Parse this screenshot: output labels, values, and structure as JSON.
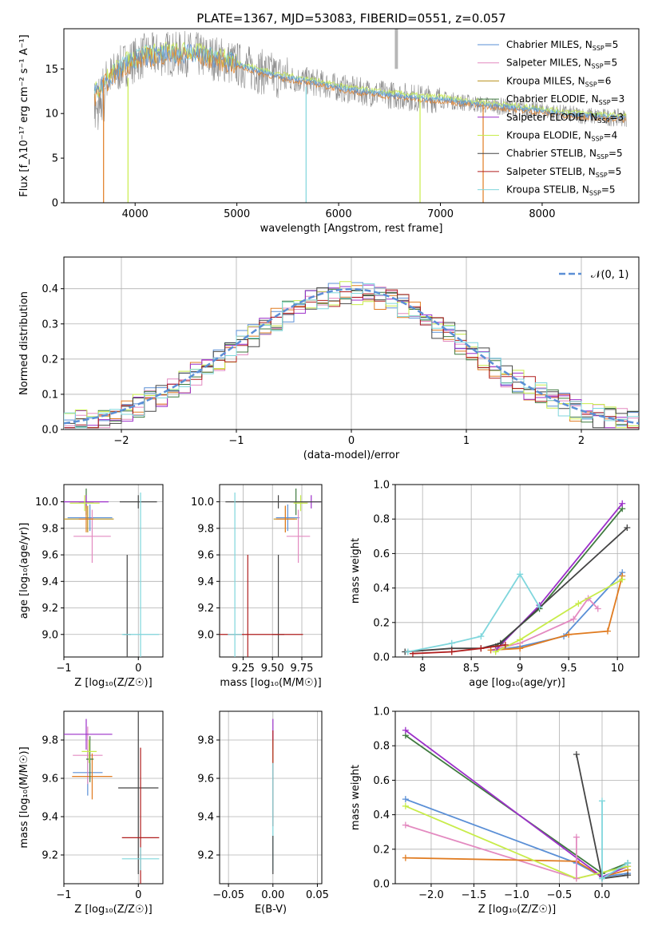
{
  "figure": {
    "title": "PLATE=1367, MJD=53083, FIBERID=0551, z=0.057"
  },
  "series_colors": {
    "Chabrier MILES": "#5a8fd6",
    "Salpeter MILES": "#e38ac0",
    "Kroupa MILES": "#b8901c",
    "Chabrier ELODIE": "#3f7a3f",
    "Salpeter ELODIE": "#9c2fc9",
    "Kroupa ELODIE": "#c8ec4a",
    "Chabrier STELIB": "#444444",
    "Salpeter STELIB": "#b01e1e",
    "Kroupa STELIB": "#7fd6dc",
    "orange": "#e07b20",
    "gray": "#8a8a8a"
  },
  "chart_data": [
    {
      "id": "spectrum",
      "type": "line",
      "xlabel": "wavelength [Angstrom, rest frame]",
      "ylabel": "Flux [f_λ10⁻¹⁷ erg cm⁻² s⁻¹ A⁻¹]",
      "xlim": [
        3300,
        8950
      ],
      "ylim": [
        0,
        19.5
      ],
      "xticks": [
        4000,
        5000,
        6000,
        7000,
        8000
      ],
      "yticks": [
        0,
        5,
        10,
        15
      ],
      "legend_position": "upper-right",
      "legend": [
        {
          "label": "Chabrier MILES, N",
          "sub": "SSP",
          "suffix": "=5",
          "key": "Chabrier MILES"
        },
        {
          "label": "Salpeter MILES, N",
          "sub": "SSP",
          "suffix": "=5",
          "key": "Salpeter MILES"
        },
        {
          "label": "Kroupa MILES, N",
          "sub": "SSP",
          "suffix": "=6",
          "key": "Kroupa MILES"
        },
        {
          "label": "Chabrier ELODIE, N",
          "sub": "SSP",
          "suffix": "=3",
          "key": "Chabrier ELODIE"
        },
        {
          "label": "Salpeter ELODIE, N",
          "sub": "SSP",
          "suffix": "=3",
          "key": "Salpeter ELODIE"
        },
        {
          "label": "Kroupa ELODIE, N",
          "sub": "SSP",
          "suffix": "=4",
          "key": "Kroupa ELODIE"
        },
        {
          "label": "Chabrier STELIB, N",
          "sub": "SSP",
          "suffix": "=5",
          "key": "Chabrier STELIB"
        },
        {
          "label": "Salpeter STELIB, N",
          "sub": "SSP",
          "suffix": "=5",
          "key": "Salpeter STELIB"
        },
        {
          "label": "Kroupa STELIB, N",
          "sub": "SSP",
          "suffix": "=5",
          "key": "Kroupa STELIB"
        }
      ],
      "data_curve": {
        "x": [
          3600,
          3700,
          3800,
          3900,
          4000,
          4100,
          4200,
          4300,
          4400,
          4500,
          4600,
          4700,
          4800,
          5000,
          5200,
          5400,
          5600,
          5800,
          6000,
          6200,
          6400,
          6600,
          6800,
          7000,
          7200,
          7400,
          7600,
          7800,
          8000,
          8200,
          8400,
          8600,
          8800
        ],
        "y": [
          12,
          13.5,
          14.5,
          15.5,
          16,
          16.5,
          16.5,
          16.8,
          16.6,
          16.7,
          16.6,
          16.3,
          16.2,
          15.5,
          14.8,
          14.2,
          13.8,
          13.4,
          12.9,
          12.5,
          12.2,
          12.0,
          11.7,
          11.6,
          11.3,
          11.0,
          10.8,
          10.5,
          10.3,
          10.0,
          9.8,
          9.6,
          9.5
        ]
      },
      "sky_line_x": [
        6560,
        6575
      ]
    },
    {
      "id": "residuals",
      "type": "line",
      "xlabel": "(data-model)/error",
      "ylabel": "Normed distribution",
      "xlim": [
        -2.5,
        2.5
      ],
      "ylim": [
        0,
        0.49
      ],
      "xticks": [
        -2,
        -1,
        0,
        1,
        2
      ],
      "yticks": [
        0.0,
        0.1,
        0.2,
        0.3,
        0.4
      ],
      "grid": true,
      "legend_position": "upper-right",
      "legend_label": "𝒩(0, 1)",
      "bin_width": 0.1
    },
    {
      "id": "age_vs_Z",
      "type": "scatter",
      "xlabel": "Z [log₁₀(Z/Z☉)]",
      "ylabel": "age  [log₁₀(age/yr)]",
      "xlim": [
        -1.0,
        0.33
      ],
      "ylim": [
        8.83,
        10.13
      ],
      "xticks": [
        -1,
        0
      ],
      "yticks": [
        9.0,
        9.2,
        9.4,
        9.6,
        9.8,
        10.0
      ],
      "grid": true,
      "points": [
        {
          "key": "Chabrier MILES",
          "x": -0.65,
          "y": 9.88,
          "xerr": 0.3,
          "yerr": 0.1
        },
        {
          "key": "Salpeter MILES",
          "x": -0.62,
          "y": 9.74,
          "xerr": 0.25,
          "yerr": 0.2
        },
        {
          "key": "Kroupa MILES",
          "x": -0.68,
          "y": 9.87,
          "xerr": 0.35,
          "yerr": 0.1
        },
        {
          "key": "Chabrier ELODIE",
          "x": -0.7,
          "y": 10.0,
          "xerr": 0.1,
          "yerr": 0.1
        },
        {
          "key": "Salpeter ELODIE",
          "x": -0.7,
          "y": 10.0,
          "xerr": 0.3,
          "yerr": 0.05
        },
        {
          "key": "Kroupa ELODIE",
          "x": -0.72,
          "y": 9.99,
          "xerr": 0.2,
          "yerr": 0.06
        },
        {
          "key": "Chabrier STELIB",
          "x": 0.0,
          "y": 10.0,
          "xerr": 0.25,
          "yerr": 0.05
        },
        {
          "key": "Chabrier STELIB",
          "x": -0.15,
          "y": 9.0,
          "xerr": 0.05,
          "yerr": 0.6
        },
        {
          "key": "Kroupa STELIB",
          "x": 0.03,
          "y": 9.0,
          "xerr": 0.25,
          "yerr": 1.07
        },
        {
          "key": "orange",
          "x": -0.7,
          "y": 9.87,
          "xerr": 0.1,
          "yerr": 0.1
        }
      ]
    },
    {
      "id": "age_vs_mass",
      "type": "scatter",
      "xlabel": "mass [log₁₀(M/M☉)]",
      "ylabel": "",
      "xlim": [
        9.05,
        9.92
      ],
      "ylim": [
        8.83,
        10.13
      ],
      "xticks": [
        9.25,
        9.5,
        9.75
      ],
      "xticklabels": [
        "9.25",
        "9.50",
        "9.75"
      ],
      "yticks": [
        9.0,
        9.2,
        9.4,
        9.6,
        9.8,
        10.0
      ],
      "grid": true,
      "points": [
        {
          "key": "Chabrier MILES",
          "x": 9.63,
          "y": 9.88,
          "xerr": 0.1,
          "yerr": 0.1
        },
        {
          "key": "Salpeter MILES",
          "x": 9.72,
          "y": 9.74,
          "xerr": 0.1,
          "yerr": 0.2
        },
        {
          "key": "Kroupa MILES",
          "x": 9.61,
          "y": 9.87,
          "xerr": 0.1,
          "yerr": 0.1
        },
        {
          "key": "Chabrier ELODIE",
          "x": 9.7,
          "y": 10.0,
          "xerr": 0.05,
          "yerr": 0.1
        },
        {
          "key": "Salpeter ELODIE",
          "x": 9.83,
          "y": 10.0,
          "xerr": 0.08,
          "yerr": 0.05
        },
        {
          "key": "Kroupa ELODIE",
          "x": 9.74,
          "y": 9.99,
          "xerr": 0.06,
          "yerr": 0.06
        },
        {
          "key": "Chabrier STELIB",
          "x": 9.55,
          "y": 10.0,
          "xerr": 0.45,
          "yerr": 0.05
        },
        {
          "key": "Chabrier STELIB",
          "x": 9.55,
          "y": 9.0,
          "xerr": 0.05,
          "yerr": 0.6
        },
        {
          "key": "Salpeter STELIB",
          "x": 9.29,
          "y": 9.0,
          "xerr": 0.47,
          "yerr": 0.6
        },
        {
          "key": "Kroupa STELIB",
          "x": 9.18,
          "y": 9.0,
          "xerr": 0.06,
          "yerr": 1.07
        },
        {
          "key": "orange",
          "x": 9.61,
          "y": 9.87,
          "xerr": 0.08,
          "yerr": 0.1
        }
      ]
    },
    {
      "id": "massweight_vs_age",
      "type": "line",
      "xlabel": "age  [log₁₀(age/yr)]",
      "ylabel": "mass weight",
      "xlim": [
        7.72,
        10.22
      ],
      "ylim": [
        0,
        1.0
      ],
      "xticks": [
        8.0,
        8.5,
        9.0,
        9.5,
        10.0
      ],
      "yticks": [
        0.0,
        0.2,
        0.4,
        0.6,
        0.8,
        1.0
      ],
      "grid": true,
      "series": [
        {
          "key": "Chabrier MILES",
          "x": [
            8.75,
            9.0,
            9.45,
            10.05
          ],
          "y": [
            0.04,
            0.06,
            0.12,
            0.49
          ]
        },
        {
          "key": "Salpeter MILES",
          "x": [
            8.7,
            9.0,
            9.55,
            9.7,
            9.8
          ],
          "y": [
            0.04,
            0.08,
            0.22,
            0.34,
            0.28
          ]
        },
        {
          "key": "orange",
          "x": [
            8.7,
            9.0,
            9.5,
            9.9,
            10.05
          ],
          "y": [
            0.04,
            0.05,
            0.13,
            0.15,
            0.47
          ]
        },
        {
          "key": "Chabrier ELODIE",
          "x": [
            8.75,
            9.2,
            10.05
          ],
          "y": [
            0.06,
            0.28,
            0.86
          ]
        },
        {
          "key": "Salpeter ELODIE",
          "x": [
            8.75,
            9.2,
            10.05
          ],
          "y": [
            0.04,
            0.3,
            0.89
          ]
        },
        {
          "key": "Kroupa ELODIE",
          "x": [
            8.75,
            9.0,
            9.6,
            10.05
          ],
          "y": [
            0.03,
            0.1,
            0.31,
            0.45
          ]
        },
        {
          "key": "Chabrier STELIB",
          "x": [
            7.82,
            8.3,
            8.6,
            8.8,
            10.1
          ],
          "y": [
            0.03,
            0.05,
            0.05,
            0.08,
            0.75
          ]
        },
        {
          "key": "Salpeter STELIB",
          "x": [
            7.9,
            8.3,
            8.6,
            8.85
          ],
          "y": [
            0.02,
            0.03,
            0.05,
            0.07
          ]
        },
        {
          "key": "Kroupa STELIB",
          "x": [
            7.85,
            8.3,
            8.6,
            9.0,
            9.2
          ],
          "y": [
            0.03,
            0.08,
            0.12,
            0.48,
            0.29
          ]
        }
      ]
    },
    {
      "id": "mass_vs_Z",
      "type": "scatter",
      "xlabel": "Z [log₁₀(Z/Z☉)]",
      "ylabel": "mass [log₁₀(M/M☉)]",
      "xlim": [
        -1.0,
        0.33
      ],
      "ylim": [
        9.05,
        9.95
      ],
      "xticks": [
        -1,
        0
      ],
      "yticks": [
        9.2,
        9.4,
        9.6,
        9.8
      ],
      "grid": true,
      "points": [
        {
          "key": "Chabrier MILES",
          "x": -0.68,
          "y": 9.63,
          "xerr": 0.2,
          "yerr": 0.12
        },
        {
          "key": "Salpeter MILES",
          "x": -0.68,
          "y": 9.72,
          "xerr": 0.2,
          "yerr": 0.15
        },
        {
          "key": "orange",
          "x": -0.62,
          "y": 9.61,
          "xerr": 0.27,
          "yerr": 0.12
        },
        {
          "key": "Chabrier ELODIE",
          "x": -0.65,
          "y": 9.7,
          "xerr": 0.05,
          "yerr": 0.12
        },
        {
          "key": "Salpeter ELODIE",
          "x": -0.7,
          "y": 9.83,
          "xerr": 0.35,
          "yerr": 0.08
        },
        {
          "key": "Kroupa ELODIE",
          "x": -0.66,
          "y": 9.74,
          "xerr": 0.1,
          "yerr": 0.06
        },
        {
          "key": "Chabrier STELIB",
          "x": 0.0,
          "y": 9.55,
          "xerr": 0.27,
          "yerr": 0.45
        },
        {
          "key": "Salpeter STELIB",
          "x": 0.03,
          "y": 9.29,
          "xerr": 0.25,
          "yerr": 0.47
        },
        {
          "key": "Kroupa STELIB",
          "x": 0.03,
          "y": 9.18,
          "xerr": 0.25,
          "yerr": 0.06
        }
      ]
    },
    {
      "id": "mass_vs_ebv",
      "type": "scatter",
      "xlabel": "E(B-V)",
      "ylabel": "",
      "xlim": [
        -0.06,
        0.055
      ],
      "ylim": [
        9.05,
        9.95
      ],
      "xticks": [
        -0.05,
        0.0,
        0.05
      ],
      "xticklabels": [
        "−0.05",
        "0.00",
        "0.05"
      ],
      "yticks": [
        9.2,
        9.4,
        9.6,
        9.8
      ],
      "grid": true,
      "points": [
        {
          "key": "Salpeter ELODIE",
          "x": 0.0,
          "y": 9.83,
          "xerr": 0.0,
          "yerr": 0.08
        },
        {
          "key": "Kroupa ELODIE",
          "x": 0.0,
          "y": 9.74,
          "xerr": 0.0,
          "yerr": 0.06
        },
        {
          "key": "Salpeter STELIB",
          "x": 0.0,
          "y": 9.6,
          "xerr": 0.0,
          "yerr": 0.25
        },
        {
          "key": "Kroupa STELIB",
          "x": 0.0,
          "y": 9.4,
          "xerr": 0.0,
          "yerr": 0.28
        },
        {
          "key": "Chabrier STELIB",
          "x": 0.0,
          "y": 9.2,
          "xerr": 0.0,
          "yerr": 0.1
        }
      ]
    },
    {
      "id": "massweight_vs_Z",
      "type": "line",
      "xlabel": "Z [log₁₀(Z/Z☉)]",
      "ylabel": "mass weight",
      "xlim": [
        -2.42,
        0.43
      ],
      "ylim": [
        0,
        1.0
      ],
      "xticks": [
        -2.0,
        -1.5,
        -1.0,
        -0.5,
        0.0
      ],
      "xticklabels": [
        "−2.0",
        "−1.5",
        "−1.0",
        "−0.5",
        "0.0"
      ],
      "yticks": [
        0.0,
        0.2,
        0.4,
        0.6,
        0.8,
        1.0
      ],
      "grid": true,
      "series": [
        {
          "key": "Chabrier MILES",
          "x": [
            -2.3,
            -0.3,
            0.0,
            0.3
          ],
          "y": [
            0.49,
            0.12,
            0.04,
            0.06
          ]
        },
        {
          "key": "Salpeter MILES",
          "x": [
            -2.3,
            -0.3,
            0.3
          ],
          "y": [
            0.34,
            0.03,
            0.1
          ]
        },
        {
          "key": "orange",
          "x": [
            -2.3,
            -0.3,
            0.0,
            0.3
          ],
          "y": [
            0.15,
            0.13,
            0.04,
            0.08
          ]
        },
        {
          "key": "Chabrier ELODIE",
          "x": [
            -2.3,
            0.0,
            0.3
          ],
          "y": [
            0.86,
            0.06,
            0.12
          ]
        },
        {
          "key": "Salpeter ELODIE",
          "x": [
            -2.3,
            0.0,
            0.3
          ],
          "y": [
            0.89,
            0.04,
            0.1
          ]
        },
        {
          "key": "Kroupa ELODIE",
          "x": [
            -2.3,
            -0.3,
            0.3
          ],
          "y": [
            0.45,
            0.03,
            0.1
          ]
        },
        {
          "key": "Chabrier STELIB",
          "x": [
            -0.3,
            0.0,
            0.3
          ],
          "y": [
            0.75,
            0.03,
            0.05
          ]
        },
        {
          "key": "Salpeter MILES",
          "x": [
            -0.3,
            -0.3
          ],
          "y": [
            0.27,
            0.03
          ]
        },
        {
          "key": "Kroupa STELIB",
          "x": [
            0.0,
            0.0,
            0.3
          ],
          "y": [
            0.48,
            0.03,
            0.12
          ]
        }
      ]
    }
  ]
}
